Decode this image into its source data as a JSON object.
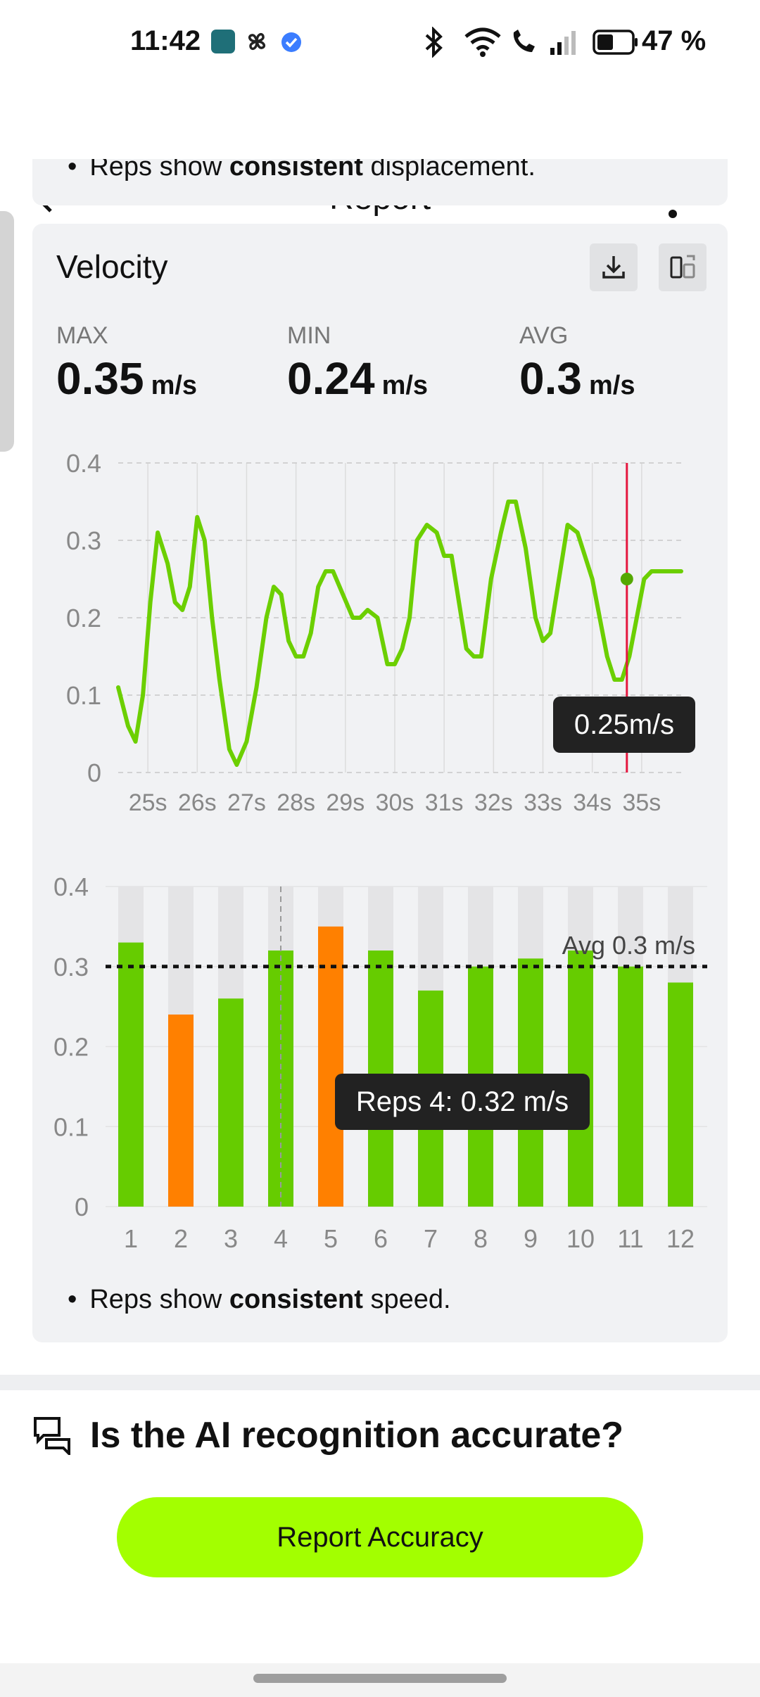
{
  "status": {
    "time": "11:42",
    "battery": "47 %",
    "apps": [
      "photos"
    ]
  },
  "header": {
    "title": "Report",
    "back_icon": "arrow-left-icon",
    "menu_icon": "more-vertical-icon"
  },
  "top_card": {
    "text_pre": "Reps show ",
    "text_bold": "consistent",
    "text_post": " displacement."
  },
  "velocity": {
    "title": "Velocity",
    "stats": [
      {
        "label": "MAX",
        "value": "0.35",
        "unit": "m/s"
      },
      {
        "label": "MIN",
        "value": "0.24",
        "unit": "m/s"
      },
      {
        "label": "AVG",
        "value": "0.3",
        "unit": "m/s"
      }
    ],
    "note_pre": "Reps show ",
    "note_bold": "consistent",
    "note_post": " speed."
  },
  "chart_data": [
    {
      "type": "line",
      "x_ticks": [
        "25s",
        "26s",
        "27s",
        "28s",
        "29s",
        "30s",
        "31s",
        "32s",
        "33s",
        "34s",
        "35s"
      ],
      "y_ticks": [
        "0.4",
        "0.3",
        "0.2",
        "0.1",
        "0"
      ],
      "ylim": [
        0,
        0.4
      ],
      "xlim": [
        24.4,
        35.8
      ],
      "color": "#6ccf00",
      "x": [
        24.4,
        24.6,
        24.75,
        24.9,
        25.05,
        25.2,
        25.4,
        25.55,
        25.7,
        25.85,
        26.0,
        26.15,
        26.3,
        26.45,
        26.65,
        26.8,
        27.0,
        27.2,
        27.4,
        27.55,
        27.7,
        27.85,
        28.0,
        28.15,
        28.3,
        28.45,
        28.6,
        28.75,
        28.95,
        29.15,
        29.3,
        29.45,
        29.65,
        29.85,
        30.0,
        30.15,
        30.3,
        30.45,
        30.65,
        30.85,
        31.0,
        31.15,
        31.3,
        31.45,
        31.6,
        31.75,
        31.95,
        32.15,
        32.3,
        32.45,
        32.65,
        32.85,
        33.0,
        33.15,
        33.3,
        33.5,
        33.7,
        33.85,
        34.0,
        34.15,
        34.3,
        34.45,
        34.6,
        34.75,
        34.9,
        35.05,
        35.2,
        35.35,
        35.5,
        35.65,
        35.8
      ],
      "y": [
        0.11,
        0.06,
        0.04,
        0.1,
        0.22,
        0.31,
        0.27,
        0.22,
        0.21,
        0.24,
        0.33,
        0.3,
        0.2,
        0.12,
        0.03,
        0.01,
        0.04,
        0.11,
        0.2,
        0.24,
        0.23,
        0.17,
        0.15,
        0.15,
        0.18,
        0.24,
        0.26,
        0.26,
        0.23,
        0.2,
        0.2,
        0.21,
        0.2,
        0.14,
        0.14,
        0.16,
        0.2,
        0.3,
        0.32,
        0.31,
        0.28,
        0.28,
        0.22,
        0.16,
        0.15,
        0.15,
        0.25,
        0.31,
        0.35,
        0.35,
        0.29,
        0.2,
        0.17,
        0.18,
        0.24,
        0.32,
        0.31,
        0.28,
        0.25,
        0.2,
        0.15,
        0.12,
        0.12,
        0.15,
        0.2,
        0.25,
        0.26,
        0.26,
        0.26,
        0.26,
        0.26
      ],
      "cursor": {
        "x": 34.7,
        "y": 0.25,
        "label": "0.25m/s"
      }
    },
    {
      "type": "bar",
      "categories": [
        "1",
        "2",
        "3",
        "4",
        "5",
        "6",
        "7",
        "8",
        "9",
        "10",
        "11",
        "12"
      ],
      "values": [
        0.33,
        0.24,
        0.26,
        0.32,
        0.35,
        0.32,
        0.27,
        0.3,
        0.31,
        0.32,
        0.3,
        0.28
      ],
      "colors": [
        "#66cc00",
        "#ff8000",
        "#66cc00",
        "#66cc00",
        "#ff8000",
        "#66cc00",
        "#66cc00",
        "#66cc00",
        "#66cc00",
        "#66cc00",
        "#66cc00",
        "#66cc00"
      ],
      "y_ticks": [
        "0.4",
        "0.3",
        "0.2",
        "0.1",
        "0"
      ],
      "ylim": [
        0,
        0.4
      ],
      "avg": 0.3,
      "avg_label": "Avg 0.3 m/s",
      "selected_index": 3,
      "tooltip": "Reps 4: 0.32 m/s"
    }
  ],
  "feedback": {
    "question": "Is the AI recognition accurate?",
    "button": "Report Accuracy",
    "icon": "chat-bubbles-icon"
  }
}
